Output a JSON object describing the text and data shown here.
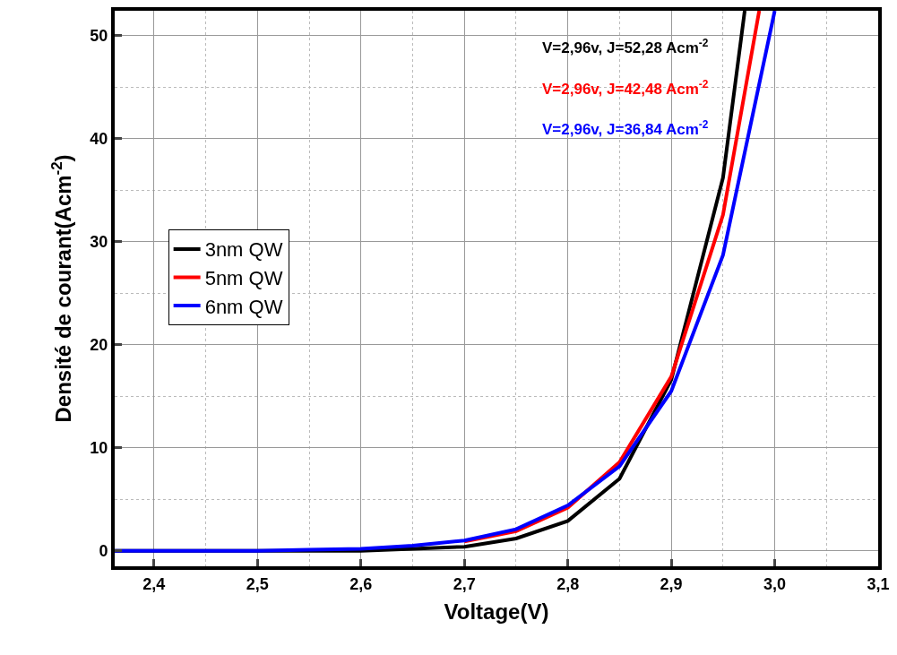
{
  "chart_data": {
    "type": "line",
    "xlabel": "Voltage(V)",
    "ylabel": "Densité de courant(Acm$^{-2}$)",
    "xlim": [
      2.362,
      3.1
    ],
    "ylim": [
      -1.5,
      52.4
    ],
    "xticks": [
      {
        "value": 2.4,
        "label": "2,4"
      },
      {
        "value": 2.5,
        "label": "2,5"
      },
      {
        "value": 2.6,
        "label": "2,6"
      },
      {
        "value": 2.7,
        "label": "2,7"
      },
      {
        "value": 2.8,
        "label": "2,8"
      },
      {
        "value": 2.9,
        "label": "2,9"
      },
      {
        "value": 3.0,
        "label": "3,0"
      },
      {
        "value": 3.1,
        "label": "3,1"
      }
    ],
    "yticks": [
      0,
      10,
      20,
      30,
      40,
      50
    ],
    "grid": true,
    "legend": "left",
    "marker": "none",
    "line_style": "solid",
    "series": [
      {
        "name": "3nm QW",
        "color": "#000000",
        "x": [
          2.362,
          2.4,
          2.45,
          2.5,
          2.55,
          2.6,
          2.65,
          2.7,
          2.75,
          2.8,
          2.85,
          2.9,
          2.95,
          2.971
        ],
        "values": [
          0,
          0,
          0,
          0,
          0,
          0,
          0.2,
          0.4,
          1.2,
          2.9,
          7.0,
          16.6,
          36.2,
          52.4
        ]
      },
      {
        "name": "5nm QW",
        "color": "#ff0000",
        "x": [
          2.7,
          2.75,
          2.8,
          2.85,
          2.9,
          2.95,
          2.985
        ],
        "values": [
          0.9,
          1.9,
          4.2,
          8.6,
          16.9,
          32.6,
          52.4
        ]
      },
      {
        "name": "6nm QW",
        "color": "#0000ff",
        "x": [
          2.362,
          2.4,
          2.45,
          2.5,
          2.55,
          2.6,
          2.65,
          2.7,
          2.75,
          2.8,
          2.85,
          2.9,
          2.95,
          3.0
        ],
        "values": [
          0,
          0,
          0,
          0,
          0.1,
          0.2,
          0.5,
          1.0,
          2.1,
          4.4,
          8.2,
          15.5,
          28.7,
          52.4
        ]
      }
    ],
    "annotations": [
      "V=2,96v, J=52,28 Acm$^{-2}$",
      "V=2,96v, J=42,48 Acm$^{-2}$",
      "V=2,96v, J=36,84 Acm$^{-2}$"
    ]
  }
}
